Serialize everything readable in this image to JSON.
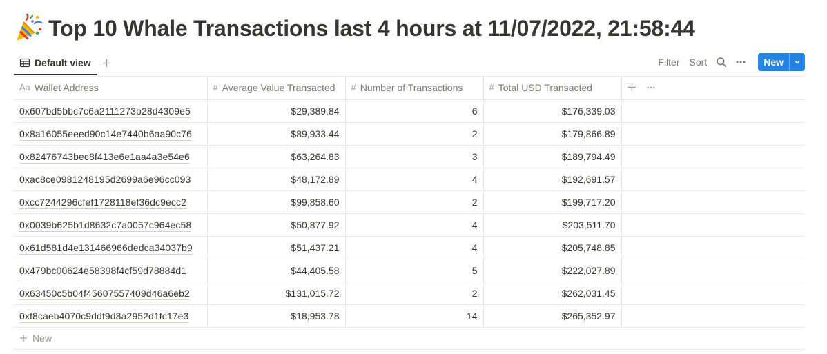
{
  "page": {
    "title": "Top 10 Whale Transactions last 4 hours at 11/07/2022, 21:58:44",
    "title_icon": "party-popper-icon"
  },
  "views": {
    "active_label": "Default view",
    "active_icon": "table-icon"
  },
  "toolbar": {
    "filter_label": "Filter",
    "sort_label": "Sort",
    "new_label": "New",
    "accent_color": "#2383e2"
  },
  "table": {
    "columns": [
      {
        "label": "Wallet Address",
        "type_glyph": "Aa"
      },
      {
        "label": "Average Value Transacted",
        "type_glyph": "#"
      },
      {
        "label": "Number of Transactions",
        "type_glyph": "#"
      },
      {
        "label": "Total USD Transacted",
        "type_glyph": "#"
      }
    ],
    "rows": [
      {
        "wallet": "0x607bd5bbc7c6a2111273b28d4309e5",
        "avg": "$29,389.84",
        "count": "6",
        "total": "$176,339.03"
      },
      {
        "wallet": "0x8a16055eeed90c14e7440b6aa90c76",
        "avg": "$89,933.44",
        "count": "2",
        "total": "$179,866.89"
      },
      {
        "wallet": "0x82476743bec8f413e6e1aa4a3e54e6",
        "avg": "$63,264.83",
        "count": "3",
        "total": "$189,794.49"
      },
      {
        "wallet": "0xac8ce0981248195d2699a6e96cc093",
        "avg": "$48,172.89",
        "count": "4",
        "total": "$192,691.57"
      },
      {
        "wallet": "0xcc7244296cfef1728118ef36dc9ecc2",
        "avg": "$99,858.60",
        "count": "2",
        "total": "$199,717.20"
      },
      {
        "wallet": "0x0039b625b1d8632c7a0057c964ec58",
        "avg": "$50,877.92",
        "count": "4",
        "total": "$203,511.70"
      },
      {
        "wallet": "0x61d581d4e131466966dedca34037b9",
        "avg": "$51,437.21",
        "count": "4",
        "total": "$205,748.85"
      },
      {
        "wallet": "0x479bc00624e58398f4cf59d78884d1",
        "avg": "$44,405.58",
        "count": "5",
        "total": "$222,027.89"
      },
      {
        "wallet": "0x63450c5b04f45607557409d46a6eb2",
        "avg": "$131,015.72",
        "count": "2",
        "total": "$262,031.45"
      },
      {
        "wallet": "0xf8caeb4070c9ddf9d8a2952d1fc17e3",
        "avg": "$18,953.78",
        "count": "14",
        "total": "$265,352.97"
      }
    ]
  },
  "footer": {
    "new_row_label": "New"
  }
}
